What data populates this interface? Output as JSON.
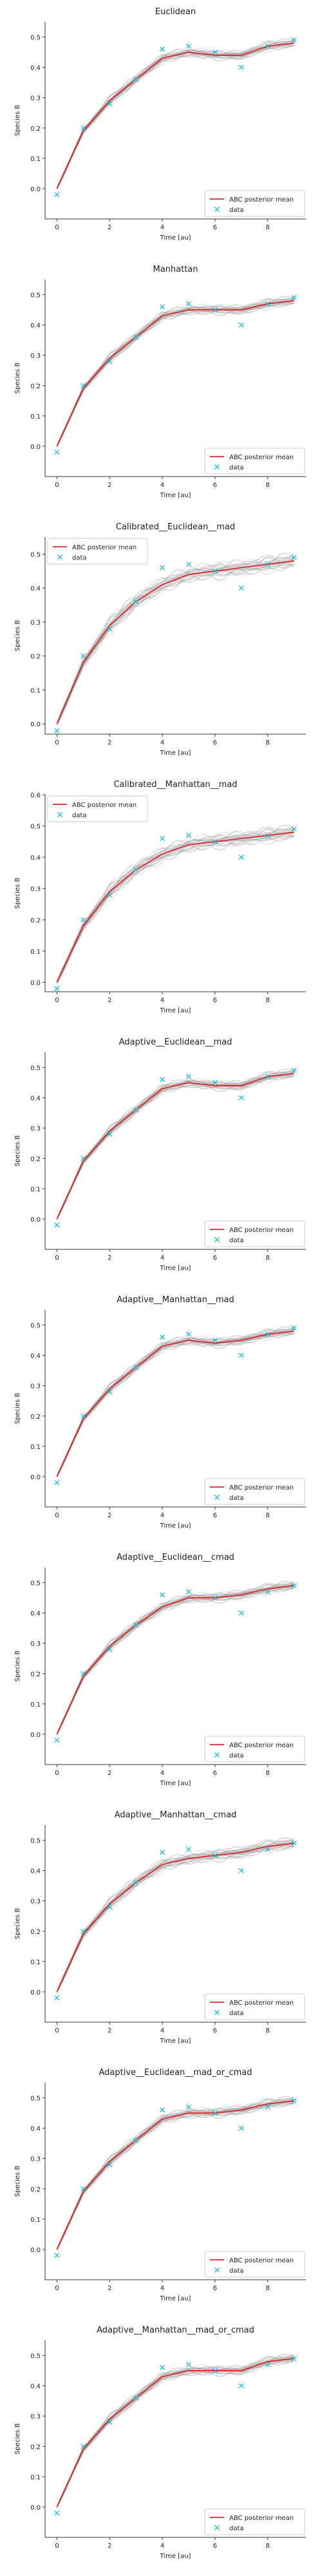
{
  "chart_data": [
    {
      "type": "line",
      "title": "Euclidean",
      "xlabel": "Time [au]",
      "ylabel": "Species B",
      "xlim": [
        -0.45,
        9.45
      ],
      "ylim": [
        -0.1,
        0.55
      ],
      "yticks": [
        0.0,
        0.1,
        0.2,
        0.3,
        0.4,
        0.5
      ],
      "xticks": [
        0,
        2,
        4,
        6,
        8
      ],
      "legend_position": "bottom-right",
      "x": [
        0,
        1,
        2,
        3,
        4,
        5,
        6,
        7,
        8,
        9
      ],
      "series": [
        {
          "name": "ABC posterior mean",
          "kind": "line",
          "color": "#d62728",
          "values": [
            0.0,
            0.19,
            0.29,
            0.36,
            0.43,
            0.45,
            0.44,
            0.44,
            0.47,
            0.48
          ]
        },
        {
          "name": "data",
          "kind": "marker",
          "color": "#17becf",
          "values": [
            -0.02,
            0.2,
            0.28,
            0.36,
            0.46,
            0.47,
            0.45,
            0.4,
            0.47,
            0.49
          ]
        }
      ],
      "band_spread": 0.02
    },
    {
      "type": "line",
      "title": "Manhattan",
      "xlabel": "Time [au]",
      "ylabel": "Species B",
      "xlim": [
        -0.45,
        9.45
      ],
      "ylim": [
        -0.1,
        0.55
      ],
      "yticks": [
        0.0,
        0.1,
        0.2,
        0.3,
        0.4,
        0.5
      ],
      "xticks": [
        0,
        2,
        4,
        6,
        8
      ],
      "legend_position": "bottom-right",
      "x": [
        0,
        1,
        2,
        3,
        4,
        5,
        6,
        7,
        8,
        9
      ],
      "series": [
        {
          "name": "ABC posterior mean",
          "kind": "line",
          "color": "#d62728",
          "values": [
            0.0,
            0.19,
            0.29,
            0.36,
            0.43,
            0.45,
            0.45,
            0.45,
            0.47,
            0.48
          ]
        },
        {
          "name": "data",
          "kind": "marker",
          "color": "#17becf",
          "values": [
            -0.02,
            0.2,
            0.28,
            0.36,
            0.46,
            0.47,
            0.45,
            0.4,
            0.47,
            0.49
          ]
        }
      ],
      "band_spread": 0.02
    },
    {
      "type": "line",
      "title": "Calibrated__Euclidean__mad",
      "xlabel": "Time [au]",
      "ylabel": "Species B",
      "xlim": [
        -0.45,
        9.45
      ],
      "ylim": [
        -0.03,
        0.55
      ],
      "yticks": [
        0.0,
        0.1,
        0.2,
        0.3,
        0.4,
        0.5
      ],
      "xticks": [
        0,
        2,
        4,
        6,
        8
      ],
      "legend_position": "top-left",
      "x": [
        0,
        1,
        2,
        3,
        4,
        5,
        6,
        7,
        8,
        9
      ],
      "series": [
        {
          "name": "ABC posterior mean",
          "kind": "line",
          "color": "#d62728",
          "values": [
            0.0,
            0.18,
            0.29,
            0.36,
            0.41,
            0.44,
            0.45,
            0.46,
            0.47,
            0.48
          ]
        },
        {
          "name": "data",
          "kind": "marker",
          "color": "#17becf",
          "values": [
            -0.02,
            0.2,
            0.28,
            0.36,
            0.46,
            0.47,
            0.45,
            0.4,
            0.47,
            0.49
          ]
        }
      ],
      "band_spread": 0.03
    },
    {
      "type": "line",
      "title": "Calibrated__Manhattan__mad",
      "xlabel": "Time [au]",
      "ylabel": "Species B",
      "xlim": [
        -0.45,
        9.45
      ],
      "ylim": [
        -0.03,
        0.6
      ],
      "yticks": [
        0.0,
        0.1,
        0.2,
        0.3,
        0.4,
        0.5,
        0.6
      ],
      "xticks": [
        0,
        2,
        4,
        6,
        8
      ],
      "legend_position": "top-left",
      "x": [
        0,
        1,
        2,
        3,
        4,
        5,
        6,
        7,
        8,
        9
      ],
      "series": [
        {
          "name": "ABC posterior mean",
          "kind": "line",
          "color": "#d62728",
          "values": [
            0.0,
            0.18,
            0.29,
            0.36,
            0.41,
            0.44,
            0.45,
            0.46,
            0.47,
            0.48
          ]
        },
        {
          "name": "data",
          "kind": "marker",
          "color": "#17becf",
          "values": [
            -0.02,
            0.2,
            0.28,
            0.36,
            0.46,
            0.47,
            0.45,
            0.4,
            0.47,
            0.49
          ]
        }
      ],
      "band_spread": 0.03
    },
    {
      "type": "line",
      "title": "Adaptive__Euclidean__mad",
      "xlabel": "Time [au]",
      "ylabel": "Species B",
      "xlim": [
        -0.45,
        9.45
      ],
      "ylim": [
        -0.1,
        0.55
      ],
      "yticks": [
        0.0,
        0.1,
        0.2,
        0.3,
        0.4,
        0.5
      ],
      "xticks": [
        0,
        2,
        4,
        6,
        8
      ],
      "legend_position": "bottom-right",
      "x": [
        0,
        1,
        2,
        3,
        4,
        5,
        6,
        7,
        8,
        9
      ],
      "series": [
        {
          "name": "ABC posterior mean",
          "kind": "line",
          "color": "#d62728",
          "values": [
            0.0,
            0.19,
            0.29,
            0.36,
            0.43,
            0.45,
            0.44,
            0.44,
            0.47,
            0.48
          ]
        },
        {
          "name": "data",
          "kind": "marker",
          "color": "#17becf",
          "values": [
            -0.02,
            0.2,
            0.28,
            0.36,
            0.46,
            0.47,
            0.45,
            0.4,
            0.47,
            0.49
          ]
        }
      ],
      "band_spread": 0.02
    },
    {
      "type": "line",
      "title": "Adaptive__Manhattan__mad",
      "xlabel": "Time [au]",
      "ylabel": "Species B",
      "xlim": [
        -0.45,
        9.45
      ],
      "ylim": [
        -0.1,
        0.55
      ],
      "yticks": [
        0.0,
        0.1,
        0.2,
        0.3,
        0.4,
        0.5
      ],
      "xticks": [
        0,
        2,
        4,
        6,
        8
      ],
      "legend_position": "bottom-right",
      "x": [
        0,
        1,
        2,
        3,
        4,
        5,
        6,
        7,
        8,
        9
      ],
      "series": [
        {
          "name": "ABC posterior mean",
          "kind": "line",
          "color": "#d62728",
          "values": [
            0.0,
            0.19,
            0.29,
            0.36,
            0.43,
            0.45,
            0.44,
            0.45,
            0.47,
            0.48
          ]
        },
        {
          "name": "data",
          "kind": "marker",
          "color": "#17becf",
          "values": [
            -0.02,
            0.2,
            0.28,
            0.36,
            0.46,
            0.47,
            0.45,
            0.4,
            0.47,
            0.49
          ]
        }
      ],
      "band_spread": 0.02
    },
    {
      "type": "line",
      "title": "Adaptive__Euclidean__cmad",
      "xlabel": "Time [au]",
      "ylabel": "Species B",
      "xlim": [
        -0.45,
        9.45
      ],
      "ylim": [
        -0.1,
        0.55
      ],
      "yticks": [
        0.0,
        0.1,
        0.2,
        0.3,
        0.4,
        0.5
      ],
      "xticks": [
        0,
        2,
        4,
        6,
        8
      ],
      "legend_position": "bottom-right",
      "x": [
        0,
        1,
        2,
        3,
        4,
        5,
        6,
        7,
        8,
        9
      ],
      "series": [
        {
          "name": "ABC posterior mean",
          "kind": "line",
          "color": "#d62728",
          "values": [
            0.0,
            0.19,
            0.29,
            0.36,
            0.42,
            0.45,
            0.45,
            0.46,
            0.48,
            0.49
          ]
        },
        {
          "name": "data",
          "kind": "marker",
          "color": "#17becf",
          "values": [
            -0.02,
            0.2,
            0.28,
            0.36,
            0.46,
            0.47,
            0.45,
            0.4,
            0.47,
            0.49
          ]
        }
      ],
      "band_spread": 0.02
    },
    {
      "type": "line",
      "title": "Adaptive__Manhattan__cmad",
      "xlabel": "Time [au]",
      "ylabel": "Species B",
      "xlim": [
        -0.45,
        9.45
      ],
      "ylim": [
        -0.1,
        0.55
      ],
      "yticks": [
        0.0,
        0.1,
        0.2,
        0.3,
        0.4,
        0.5
      ],
      "xticks": [
        0,
        2,
        4,
        6,
        8
      ],
      "legend_position": "bottom-right",
      "x": [
        0,
        1,
        2,
        3,
        4,
        5,
        6,
        7,
        8,
        9
      ],
      "series": [
        {
          "name": "ABC posterior mean",
          "kind": "line",
          "color": "#d62728",
          "values": [
            0.0,
            0.19,
            0.29,
            0.36,
            0.42,
            0.44,
            0.45,
            0.46,
            0.48,
            0.49
          ]
        },
        {
          "name": "data",
          "kind": "marker",
          "color": "#17becf",
          "values": [
            -0.02,
            0.2,
            0.28,
            0.36,
            0.46,
            0.47,
            0.45,
            0.4,
            0.47,
            0.49
          ]
        }
      ],
      "band_spread": 0.025
    },
    {
      "type": "line",
      "title": "Adaptive__Euclidean__mad_or_cmad",
      "xlabel": "Time [au]",
      "ylabel": "Species B",
      "xlim": [
        -0.45,
        9.45
      ],
      "ylim": [
        -0.1,
        0.55
      ],
      "yticks": [
        0.0,
        0.1,
        0.2,
        0.3,
        0.4,
        0.5
      ],
      "xticks": [
        0,
        2,
        4,
        6,
        8
      ],
      "legend_position": "bottom-right",
      "x": [
        0,
        1,
        2,
        3,
        4,
        5,
        6,
        7,
        8,
        9
      ],
      "series": [
        {
          "name": "ABC posterior mean",
          "kind": "line",
          "color": "#d62728",
          "values": [
            0.0,
            0.19,
            0.29,
            0.36,
            0.43,
            0.45,
            0.45,
            0.46,
            0.48,
            0.49
          ]
        },
        {
          "name": "data",
          "kind": "marker",
          "color": "#17becf",
          "values": [
            -0.02,
            0.2,
            0.28,
            0.36,
            0.46,
            0.47,
            0.45,
            0.4,
            0.47,
            0.49
          ]
        }
      ],
      "band_spread": 0.02
    },
    {
      "type": "line",
      "title": "Adaptive__Manhattan__mad_or_cmad",
      "xlabel": "Time [au]",
      "ylabel": "Species B",
      "xlim": [
        -0.45,
        9.45
      ],
      "ylim": [
        -0.1,
        0.55
      ],
      "yticks": [
        0.0,
        0.1,
        0.2,
        0.3,
        0.4,
        0.5
      ],
      "xticks": [
        0,
        2,
        4,
        6,
        8
      ],
      "legend_position": "bottom-right",
      "x": [
        0,
        1,
        2,
        3,
        4,
        5,
        6,
        7,
        8,
        9
      ],
      "series": [
        {
          "name": "ABC posterior mean",
          "kind": "line",
          "color": "#d62728",
          "values": [
            0.0,
            0.19,
            0.29,
            0.36,
            0.43,
            0.45,
            0.45,
            0.45,
            0.48,
            0.49
          ]
        },
        {
          "name": "data",
          "kind": "marker",
          "color": "#17becf",
          "values": [
            -0.02,
            0.2,
            0.28,
            0.36,
            0.46,
            0.47,
            0.45,
            0.4,
            0.47,
            0.49
          ]
        }
      ],
      "band_spread": 0.02
    }
  ]
}
